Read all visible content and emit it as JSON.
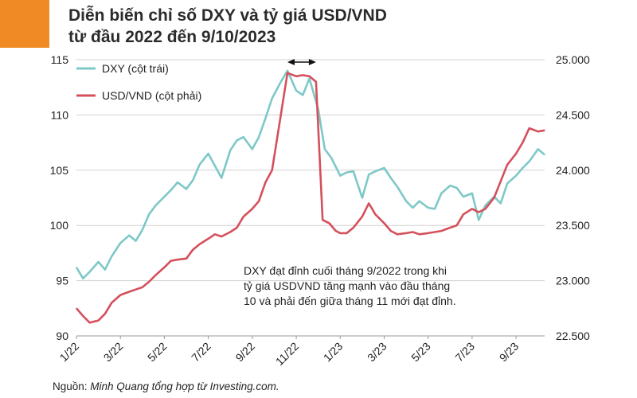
{
  "title_line1": "Diễn biến chỉ số DXY và tỷ giá USD/VND",
  "title_line2": "từ đầu 2022 đến 9/10/2023",
  "source_prefix": "Nguồn: ",
  "source_text": "Minh Quang tổng hợp từ Investing.com.",
  "colors": {
    "accent": "#f08a24",
    "dxy": "#7ec8c8",
    "usdvnd": "#d4505c",
    "grid": "#d0d0d0"
  },
  "chart_data": {
    "type": "line",
    "x_tick_labels": [
      "1/22",
      "3/22",
      "5/22",
      "7/22",
      "9/22",
      "11/22",
      "1/23",
      "3/23",
      "5/23",
      "7/23",
      "9/23"
    ],
    "xlim": [
      "2022-01",
      "2023-10-09"
    ],
    "y_left": {
      "ticks": [
        "115",
        "110",
        "105",
        "100",
        "95",
        "90"
      ],
      "ylim": [
        90,
        115
      ]
    },
    "y_right": {
      "ticks": [
        "25.000",
        "24.500",
        "24.000",
        "23.500",
        "23.000",
        "22.500"
      ],
      "ylim": [
        22500,
        25000
      ]
    },
    "grid": "horizontal",
    "legend_placement": "top-left",
    "series": [
      {
        "name": "DXY (cột trái)",
        "axis": "left",
        "x": [
          0,
          0.3,
          0.6,
          1.0,
          1.3,
          1.6,
          2.0,
          2.4,
          2.7,
          3.0,
          3.3,
          3.6,
          4.0,
          4.3,
          4.6,
          5.0,
          5.3,
          5.6,
          6.0,
          6.3,
          6.6,
          7.0,
          7.3,
          7.6,
          8.0,
          8.3,
          8.6,
          8.9,
          9.3,
          9.6,
          10.0,
          10.3,
          10.6,
          11.0,
          11.3,
          11.6,
          12.0,
          12.3,
          12.6,
          13.0,
          13.3,
          13.6,
          14.0,
          14.3,
          14.6,
          15.0,
          15.3,
          15.6,
          16.0,
          16.3,
          16.6,
          17.0,
          17.3,
          17.6,
          18.0,
          18.3,
          18.6,
          19.0,
          19.3,
          19.6,
          20.0,
          20.3,
          20.6,
          21.0,
          21.3
        ],
        "values": [
          96.2,
          95.2,
          95.8,
          96.7,
          96.0,
          97.2,
          98.4,
          99.1,
          98.6,
          99.6,
          101.0,
          101.8,
          102.6,
          103.2,
          103.9,
          103.3,
          104.1,
          105.5,
          106.5,
          105.4,
          104.3,
          106.8,
          107.7,
          108.0,
          106.9,
          108.0,
          109.7,
          111.5,
          113.0,
          114.0,
          112.2,
          111.8,
          113.3,
          110.5,
          106.9,
          106.1,
          104.5,
          104.8,
          104.9,
          102.5,
          104.6,
          104.9,
          105.2,
          104.3,
          103.5,
          102.2,
          101.6,
          102.2,
          101.6,
          101.5,
          102.9,
          103.6,
          103.4,
          102.6,
          102.9,
          100.5,
          101.8,
          102.6,
          102.0,
          103.8,
          104.5,
          105.2,
          105.8,
          106.9,
          106.4
        ]
      },
      {
        "name": "USD/VND (cột phải)",
        "axis": "right",
        "x": [
          0,
          0.3,
          0.6,
          1.0,
          1.3,
          1.6,
          2.0,
          2.4,
          2.7,
          3.0,
          3.3,
          3.6,
          4.0,
          4.3,
          4.6,
          5.0,
          5.3,
          5.6,
          6.0,
          6.3,
          6.6,
          7.0,
          7.3,
          7.6,
          8.0,
          8.3,
          8.6,
          8.9,
          9.3,
          9.6,
          10.0,
          10.3,
          10.6,
          10.9,
          11.2,
          11.5,
          11.8,
          12.0,
          12.3,
          12.6,
          13.0,
          13.3,
          13.6,
          14.0,
          14.3,
          14.6,
          15.0,
          15.3,
          15.6,
          16.0,
          16.3,
          16.6,
          17.0,
          17.3,
          17.6,
          18.0,
          18.3,
          18.6,
          19.0,
          19.3,
          19.6,
          20.0,
          20.3,
          20.6,
          21.0,
          21.3
        ],
        "values": [
          22750,
          22680,
          22620,
          22640,
          22700,
          22800,
          22870,
          22900,
          22920,
          22940,
          22990,
          23050,
          23120,
          23180,
          23190,
          23200,
          23280,
          23330,
          23380,
          23420,
          23400,
          23440,
          23480,
          23580,
          23650,
          23720,
          23890,
          24000,
          24500,
          24880,
          24850,
          24860,
          24850,
          24800,
          23550,
          23520,
          23450,
          23430,
          23430,
          23480,
          23580,
          23700,
          23600,
          23520,
          23450,
          23420,
          23430,
          23440,
          23420,
          23430,
          23440,
          23450,
          23480,
          23500,
          23600,
          23650,
          23620,
          23650,
          23750,
          23900,
          24050,
          24150,
          24250,
          24380,
          24350,
          24360
        ]
      }
    ]
  },
  "annotation_lines": [
    "DXY đạt đỉnh cuối tháng 9/2022 trong khi",
    "tỷ giá USDVND tăng mạnh vào đầu tháng",
    "10 và phải đến giữa tháng 11 mới đạt đỉnh."
  ]
}
